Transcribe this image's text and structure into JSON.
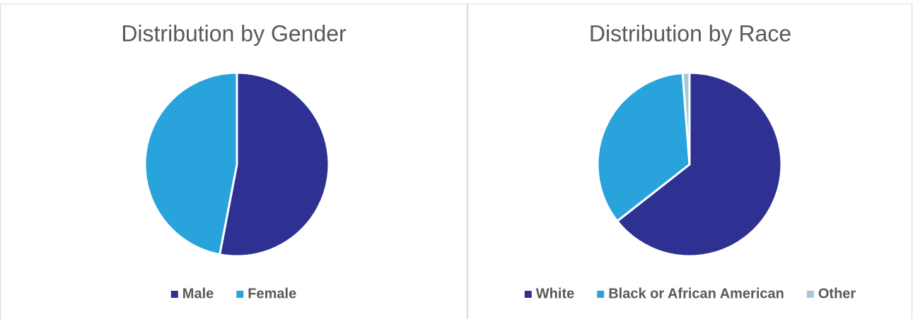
{
  "chart_data": [
    {
      "type": "pie",
      "title": "Distribution by Gender",
      "categories": [
        "Male",
        "Female"
      ],
      "values": [
        53,
        47
      ],
      "colors": [
        "#2e3192",
        "#29a3db"
      ],
      "legend": "bottom"
    },
    {
      "type": "pie",
      "title": "Distribution by Race",
      "categories": [
        "White",
        "Black or African American",
        "Other"
      ],
      "values": [
        64.4,
        34.4,
        1.2
      ],
      "colors": [
        "#2e3192",
        "#29a3db",
        "#a5c8d8"
      ],
      "legend": "bottom"
    }
  ]
}
